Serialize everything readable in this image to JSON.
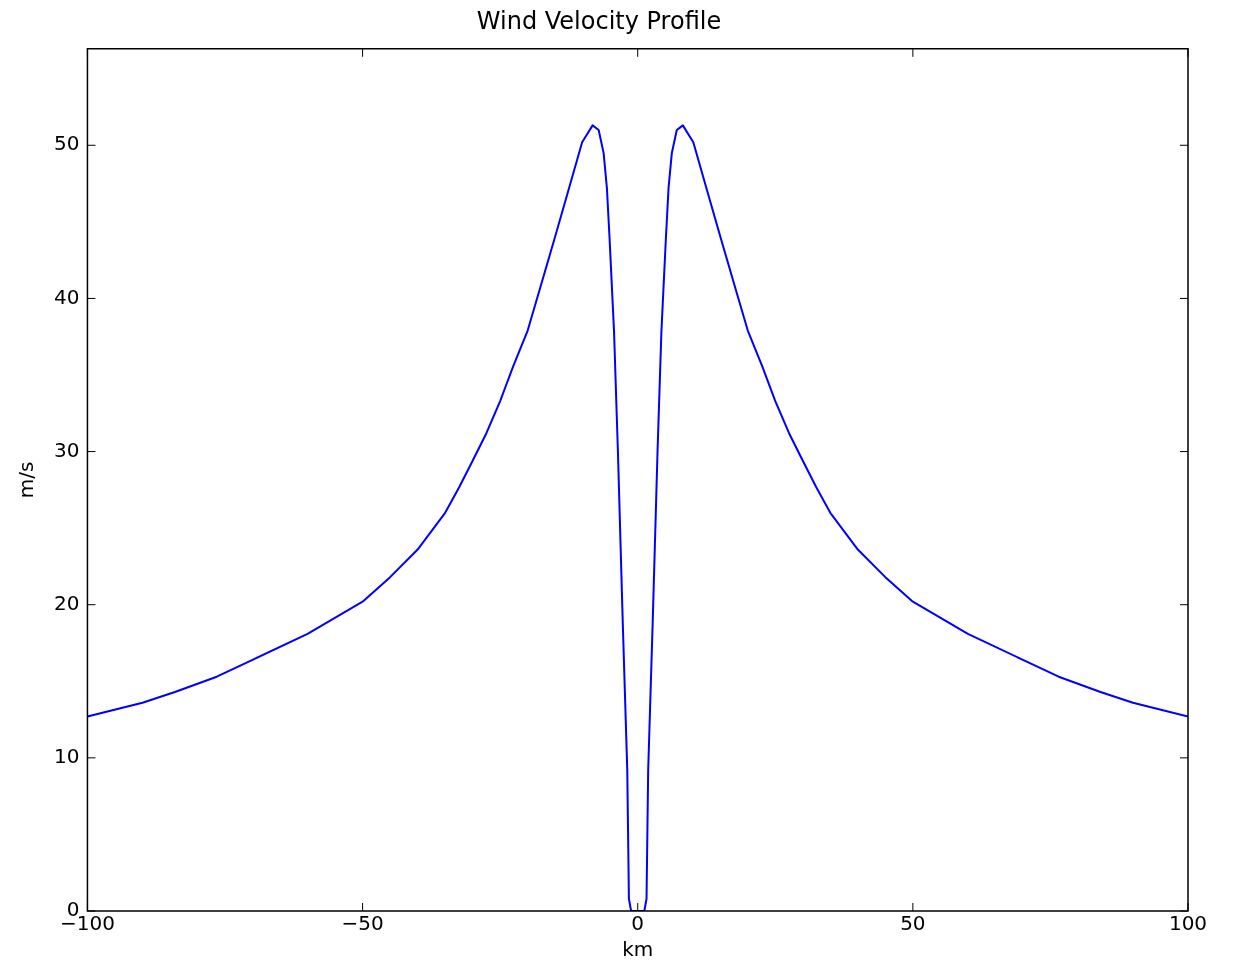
{
  "chart_data": {
    "type": "line",
    "title": "Wind Velocity Profile",
    "xlabel": "km",
    "ylabel": "m/s",
    "x": [
      -100,
      -90,
      -84.1,
      -76.5,
      -70,
      -60,
      -50,
      -45,
      -40,
      -35,
      -32.4,
      -30,
      -27.5,
      -25,
      -22.6,
      -20,
      -17.8,
      -15.2,
      -12.8,
      -10.1,
      -8.2,
      -7.1,
      -6.2,
      -5.6,
      -5.1,
      -4.3,
      -3.6,
      -2.7,
      -1.9,
      -1.6,
      -1.2,
      0,
      1.2,
      1.6,
      1.9,
      2.7,
      3.6,
      4.3,
      5.1,
      5.6,
      6.2,
      7.1,
      8.2,
      10.1,
      12.8,
      15.2,
      17.8,
      20,
      22.6,
      25,
      27.5,
      30,
      32.4,
      35,
      40,
      45,
      50,
      60,
      70,
      76.5,
      84.1,
      90,
      100
    ],
    "series": [
      {
        "color": "#0000ff",
        "values": [
          12.7,
          13.6,
          14.3,
          15.3,
          16.4,
          18.1,
          20.2,
          21.8,
          23.6,
          26.0,
          27.7,
          29.4,
          31.2,
          33.3,
          35.6,
          37.9,
          40.6,
          43.8,
          46.8,
          50.2,
          51.3,
          51.0,
          49.5,
          47.2,
          43.8,
          37.8,
          30.0,
          18.6,
          9.2,
          0.8,
          0,
          0,
          0,
          0.8,
          9.2,
          18.6,
          30.0,
          37.8,
          43.8,
          47.2,
          49.5,
          51.0,
          51.3,
          50.2,
          46.8,
          43.8,
          40.6,
          37.9,
          35.6,
          33.3,
          31.2,
          29.4,
          27.7,
          26.0,
          23.6,
          21.8,
          20.2,
          18.1,
          16.4,
          15.3,
          14.3,
          13.6,
          12.7
        ]
      }
    ],
    "xlim": [
      -100,
      100
    ],
    "xticks": [
      {
        "value": -100,
        "label": "−100"
      },
      {
        "value": -50,
        "label": "−50"
      },
      0,
      50,
      100
    ],
    "ylim": [
      0,
      56.3
    ],
    "yticks": [
      0,
      10,
      20,
      30,
      40,
      50
    ],
    "grid": false,
    "legend": false,
    "marker": "none",
    "line_style": "solid"
  }
}
